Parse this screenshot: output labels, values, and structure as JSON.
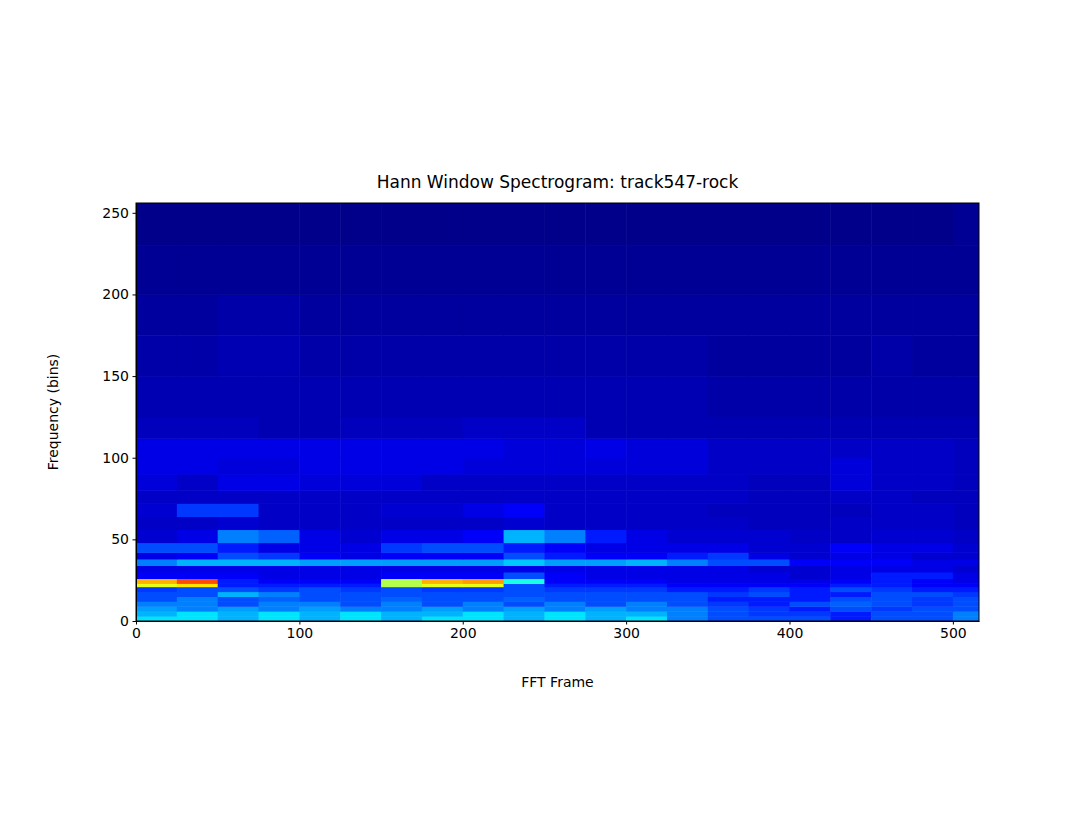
{
  "chart_data": {
    "type": "heatmap",
    "title": "Hann Window Spectrogram: track547-rock",
    "x_label": "FFT Frame",
    "y_label": "Frequency (bins)",
    "xlim": [
      0,
      516
    ],
    "ylim": [
      0,
      256
    ],
    "xticks": [
      0,
      100,
      200,
      300,
      400,
      500
    ],
    "yticks": [
      0,
      50,
      100,
      150,
      200,
      250
    ],
    "zlim": [
      0,
      1
    ],
    "x_edges": [
      0,
      25,
      50,
      75,
      100,
      125,
      150,
      175,
      200,
      225,
      250,
      275,
      300,
      325,
      350,
      375,
      400,
      425,
      450,
      475,
      500,
      516
    ],
    "y_edges": [
      0,
      3,
      6,
      9,
      12,
      15,
      18,
      21,
      23,
      26,
      30,
      34,
      38,
      42,
      48,
      56,
      64,
      72,
      80,
      90,
      100,
      112,
      125,
      150,
      175,
      200,
      230,
      256
    ],
    "cells": [
      [
        0.35,
        0.35,
        0.3,
        0.35,
        0.3,
        0.35,
        0.3,
        0.35,
        0.35,
        0.3,
        0.35,
        0.3,
        0.35,
        0.25,
        0.2,
        0.2,
        0.2,
        0.15,
        0.2,
        0.2,
        0.25
      ],
      [
        0.3,
        0.35,
        0.3,
        0.35,
        0.3,
        0.35,
        0.3,
        0.3,
        0.35,
        0.3,
        0.35,
        0.3,
        0.3,
        0.25,
        0.2,
        0.18,
        0.18,
        0.15,
        0.2,
        0.2,
        0.25
      ],
      [
        0.28,
        0.25,
        0.28,
        0.25,
        0.28,
        0.25,
        0.25,
        0.28,
        0.25,
        0.28,
        0.25,
        0.28,
        0.25,
        0.25,
        0.2,
        0.18,
        0.15,
        0.2,
        0.18,
        0.2,
        0.2
      ],
      [
        0.25,
        0.25,
        0.2,
        0.25,
        0.25,
        0.2,
        0.25,
        0.2,
        0.25,
        0.2,
        0.25,
        0.2,
        0.25,
        0.2,
        0.18,
        0.15,
        0.2,
        0.22,
        0.2,
        0.18,
        0.2
      ],
      [
        0.2,
        0.25,
        0.2,
        0.22,
        0.2,
        0.2,
        0.22,
        0.2,
        0.2,
        0.22,
        0.2,
        0.2,
        0.2,
        0.2,
        0.15,
        0.15,
        0.15,
        0.2,
        0.2,
        0.18,
        0.2
      ],
      [
        0.2,
        0.2,
        0.3,
        0.25,
        0.2,
        0.2,
        0.2,
        0.2,
        0.2,
        0.2,
        0.2,
        0.2,
        0.2,
        0.2,
        0.18,
        0.2,
        0.15,
        0.15,
        0.2,
        0.2,
        0.18
      ],
      [
        0.18,
        0.2,
        0.2,
        0.18,
        0.2,
        0.18,
        0.2,
        0.18,
        0.18,
        0.2,
        0.18,
        0.18,
        0.18,
        0.15,
        0.15,
        0.18,
        0.15,
        0.2,
        0.18,
        0.15,
        0.15
      ],
      [
        0.6,
        0.65,
        0.15,
        0.15,
        0.15,
        0.15,
        0.55,
        0.6,
        0.6,
        0.2,
        0.15,
        0.15,
        0.15,
        0.12,
        0.12,
        0.12,
        0.12,
        0.15,
        0.15,
        0.12,
        0.12
      ],
      [
        0.7,
        0.8,
        0.15,
        0.12,
        0.12,
        0.12,
        0.55,
        0.7,
        0.72,
        0.4,
        0.12,
        0.12,
        0.12,
        0.1,
        0.1,
        0.1,
        0.1,
        0.12,
        0.15,
        0.12,
        0.1
      ],
      [
        0.12,
        0.12,
        0.12,
        0.1,
        0.1,
        0.1,
        0.12,
        0.12,
        0.12,
        0.2,
        0.12,
        0.1,
        0.1,
        0.1,
        0.1,
        0.1,
        0.08,
        0.1,
        0.15,
        0.15,
        0.1
      ],
      [
        0.1,
        0.1,
        0.1,
        0.1,
        0.1,
        0.1,
        0.1,
        0.1,
        0.1,
        0.1,
        0.1,
        0.1,
        0.1,
        0.1,
        0.1,
        0.08,
        0.08,
        0.1,
        0.1,
        0.1,
        0.08
      ],
      [
        0.25,
        0.3,
        0.3,
        0.3,
        0.28,
        0.28,
        0.28,
        0.28,
        0.28,
        0.32,
        0.28,
        0.28,
        0.3,
        0.25,
        0.2,
        0.2,
        0.12,
        0.12,
        0.12,
        0.1,
        0.1
      ],
      [
        0.1,
        0.12,
        0.2,
        0.18,
        0.12,
        0.1,
        0.12,
        0.12,
        0.12,
        0.2,
        0.15,
        0.12,
        0.12,
        0.15,
        0.18,
        0.1,
        0.08,
        0.1,
        0.1,
        0.08,
        0.08
      ],
      [
        0.2,
        0.2,
        0.15,
        0.1,
        0.1,
        0.1,
        0.18,
        0.2,
        0.2,
        0.15,
        0.12,
        0.1,
        0.1,
        0.1,
        0.1,
        0.08,
        0.08,
        0.12,
        0.1,
        0.1,
        0.08
      ],
      [
        0.08,
        0.1,
        0.25,
        0.22,
        0.1,
        0.08,
        0.1,
        0.1,
        0.12,
        0.3,
        0.25,
        0.15,
        0.1,
        0.08,
        0.08,
        0.08,
        0.07,
        0.07,
        0.08,
        0.08,
        0.07
      ],
      [
        0.07,
        0.07,
        0.08,
        0.07,
        0.07,
        0.07,
        0.07,
        0.07,
        0.07,
        0.08,
        0.07,
        0.07,
        0.07,
        0.07,
        0.07,
        0.06,
        0.06,
        0.07,
        0.07,
        0.07,
        0.06
      ],
      [
        0.08,
        0.18,
        0.18,
        0.07,
        0.07,
        0.07,
        0.08,
        0.08,
        0.1,
        0.12,
        0.07,
        0.07,
        0.07,
        0.07,
        0.06,
        0.06,
        0.06,
        0.06,
        0.07,
        0.07,
        0.06
      ],
      [
        0.07,
        0.07,
        0.07,
        0.07,
        0.07,
        0.07,
        0.07,
        0.07,
        0.07,
        0.07,
        0.07,
        0.07,
        0.07,
        0.07,
        0.07,
        0.06,
        0.06,
        0.07,
        0.07,
        0.06,
        0.06
      ],
      [
        0.09,
        0.07,
        0.1,
        0.1,
        0.09,
        0.09,
        0.09,
        0.07,
        0.07,
        0.07,
        0.07,
        0.07,
        0.07,
        0.07,
        0.07,
        0.06,
        0.06,
        0.09,
        0.07,
        0.07,
        0.06
      ],
      [
        0.1,
        0.1,
        0.09,
        0.09,
        0.1,
        0.1,
        0.1,
        0.1,
        0.09,
        0.09,
        0.09,
        0.09,
        0.09,
        0.09,
        0.07,
        0.07,
        0.07,
        0.09,
        0.07,
        0.07,
        0.06
      ],
      [
        0.1,
        0.1,
        0.1,
        0.1,
        0.1,
        0.1,
        0.1,
        0.1,
        0.1,
        0.09,
        0.09,
        0.1,
        0.09,
        0.09,
        0.07,
        0.07,
        0.07,
        0.07,
        0.07,
        0.07,
        0.06
      ],
      [
        0.06,
        0.06,
        0.06,
        0.05,
        0.05,
        0.06,
        0.06,
        0.06,
        0.07,
        0.07,
        0.07,
        0.05,
        0.05,
        0.05,
        0.05,
        0.05,
        0.05,
        0.05,
        0.05,
        0.05,
        0.05
      ],
      [
        0.05,
        0.05,
        0.05,
        0.05,
        0.05,
        0.05,
        0.05,
        0.05,
        0.05,
        0.05,
        0.05,
        0.05,
        0.05,
        0.05,
        0.04,
        0.04,
        0.04,
        0.04,
        0.04,
        0.04,
        0.04
      ],
      [
        0.04,
        0.04,
        0.05,
        0.05,
        0.04,
        0.04,
        0.04,
        0.04,
        0.04,
        0.04,
        0.04,
        0.04,
        0.04,
        0.04,
        0.03,
        0.03,
        0.03,
        0.03,
        0.04,
        0.03,
        0.03
      ],
      [
        0.03,
        0.03,
        0.04,
        0.04,
        0.03,
        0.03,
        0.03,
        0.03,
        0.03,
        0.03,
        0.03,
        0.03,
        0.03,
        0.03,
        0.03,
        0.03,
        0.03,
        0.03,
        0.03,
        0.03,
        0.03
      ],
      [
        0.02,
        0.02,
        0.02,
        0.02,
        0.02,
        0.02,
        0.02,
        0.02,
        0.02,
        0.02,
        0.02,
        0.02,
        0.02,
        0.02,
        0.02,
        0.02,
        0.02,
        0.02,
        0.02,
        0.02,
        0.02
      ],
      [
        0.01,
        0.01,
        0.01,
        0.01,
        0.01,
        0.01,
        0.01,
        0.01,
        0.01,
        0.01,
        0.01,
        0.01,
        0.01,
        0.01,
        0.01,
        0.01,
        0.01,
        0.01,
        0.01,
        0.01,
        0.02
      ]
    ]
  }
}
